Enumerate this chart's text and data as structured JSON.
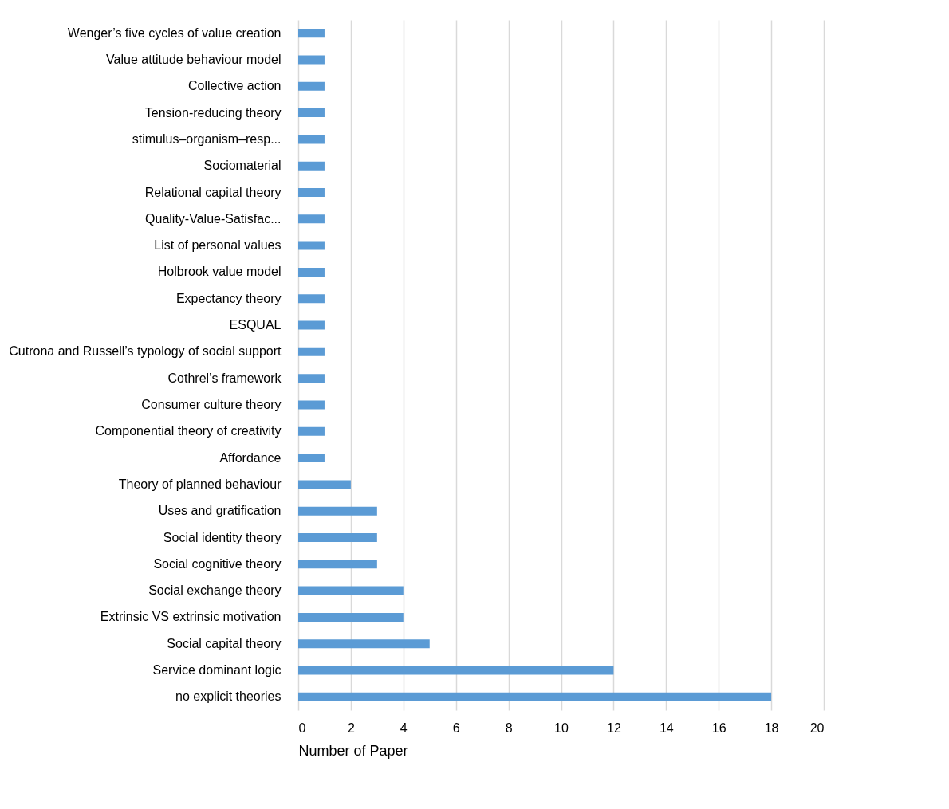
{
  "chart_data": {
    "type": "bar",
    "orientation": "horizontal",
    "xlabel": "Number of Paper",
    "categories": [
      "Wenger’s five cycles of value creation",
      "Value attitude behaviour model",
      "Collective action",
      "Tension-reducing theory",
      "stimulus–organism–resp...",
      "Sociomaterial",
      "Relational capital theory",
      "Quality-Value-Satisfac...",
      "List of personal values ",
      "Holbrook value model",
      "Expectancy theory",
      "ESQUAL",
      "Cutrona and Russell’s typology of social support",
      "Cothrel’s framework",
      "Consumer culture theory",
      "Componential theory of creativity",
      "Affordance ",
      "Theory of planned behaviour",
      "Uses and gratification",
      "Social identity theory",
      "Social cognitive theory",
      "Social exchange theory",
      "Extrinsic VS extrinsic motivation",
      "Social capital theory",
      "Service dominant logic",
      "no explicit theories"
    ],
    "values": [
      1,
      1,
      1,
      1,
      1,
      1,
      1,
      1,
      1,
      1,
      1,
      1,
      1,
      1,
      1,
      1,
      1,
      2,
      3,
      3,
      3,
      4,
      4,
      5,
      12,
      18
    ],
    "color": "#5b9bd5",
    "xlim": [
      0,
      20
    ],
    "xticks": [
      0,
      2,
      4,
      6,
      8,
      10,
      12,
      14,
      16,
      18,
      20
    ],
    "grid": "x"
  }
}
